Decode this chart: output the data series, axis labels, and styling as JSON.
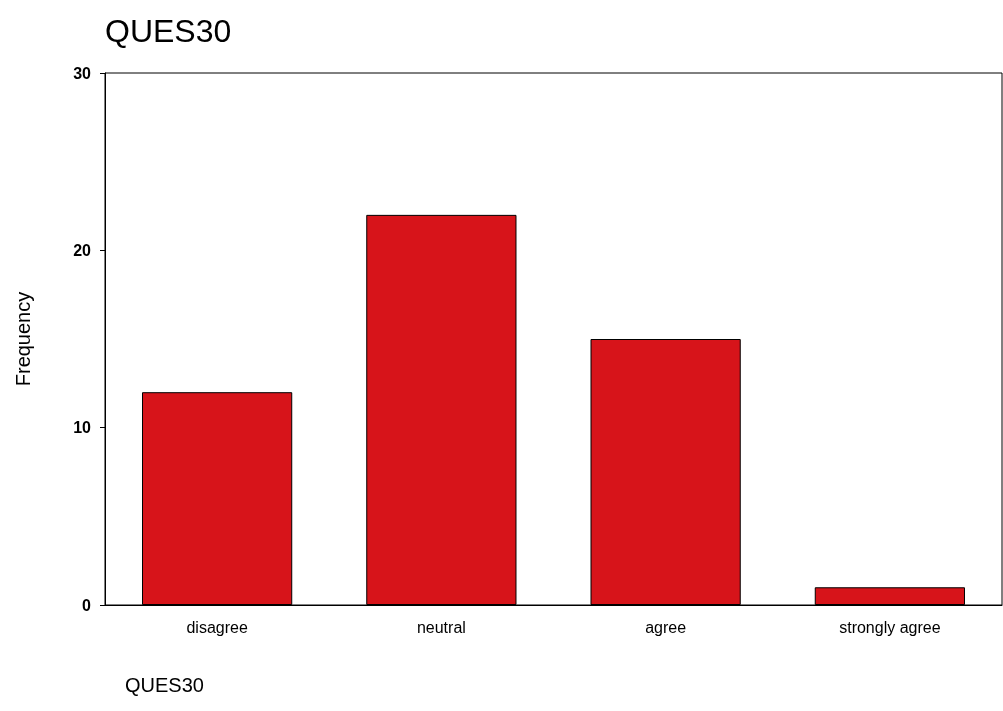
{
  "chart_data": {
    "type": "bar",
    "title": "QUES30",
    "xlabel": "QUES30",
    "ylabel": "Frequency",
    "categories": [
      "disagree",
      "neutral",
      "agree",
      "strongly agree"
    ],
    "values": [
      12,
      22,
      15,
      1
    ],
    "color": "#d7141a",
    "ylim": [
      0,
      30
    ],
    "yticks": [
      0,
      10,
      20,
      30
    ],
    "grid": false
  }
}
